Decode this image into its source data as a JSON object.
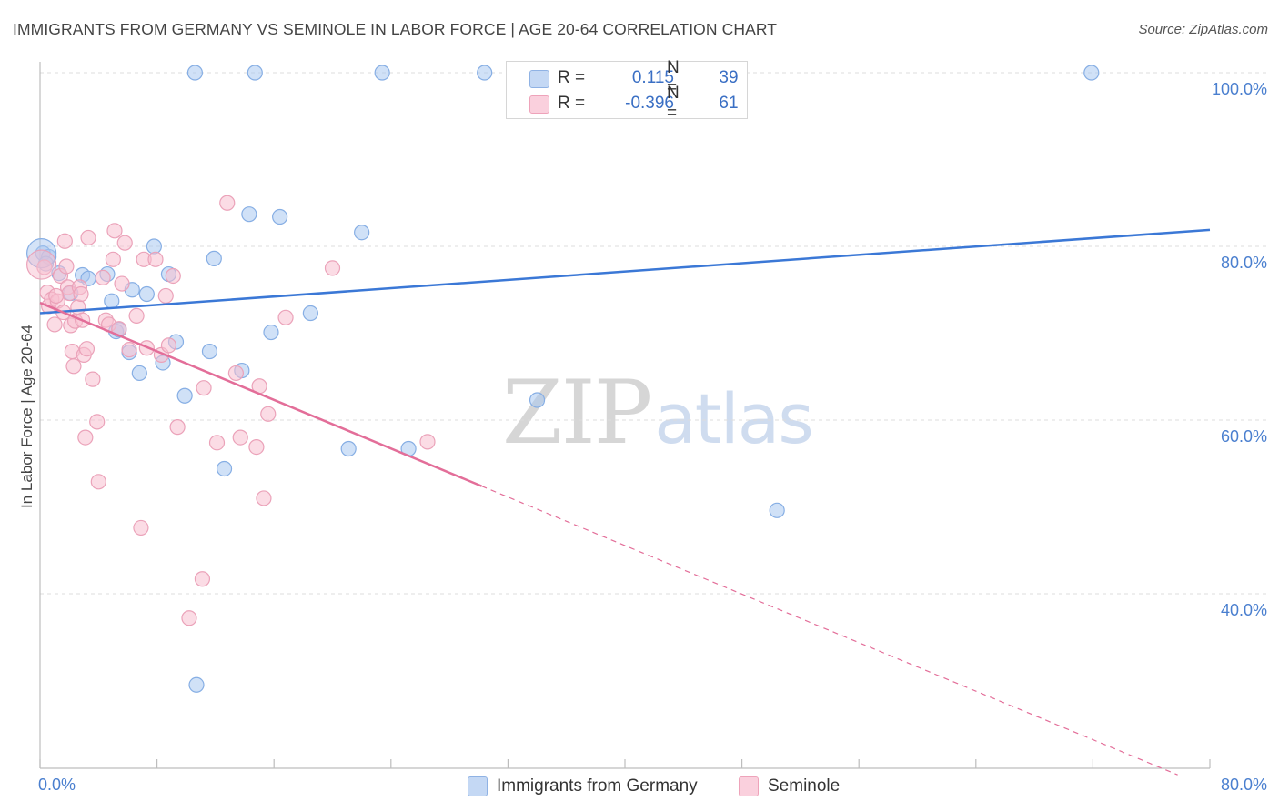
{
  "header": {
    "title": "IMMIGRANTS FROM GERMANY VS SEMINOLE IN LABOR FORCE | AGE 20-64 CORRELATION CHART",
    "source": "Source: ZipAtlas.com"
  },
  "watermark": {
    "zip": "ZIP",
    "atlas": "atlas"
  },
  "legend_top": {
    "rows": [
      {
        "r_label": "R =",
        "r_value": "0.115",
        "n_label": "N =",
        "n_value": "39",
        "color": "#9ec0ee"
      },
      {
        "r_label": "R =",
        "r_value": "-0.396",
        "n_label": "N =",
        "n_value": "61",
        "color": "#f4aec4"
      }
    ]
  },
  "legend_bottom": {
    "items": [
      {
        "label": "Immigrants from Germany",
        "color": "#9ec0ee"
      },
      {
        "label": "Seminole",
        "color": "#f4aec4"
      }
    ]
  },
  "chart_data": {
    "type": "scatter",
    "title": "IMMIGRANTS FROM GERMANY VS SEMINOLE IN LABOR FORCE | AGE 20-64 CORRELATION CHART",
    "xlabel": "",
    "ylabel": "In Labor Force | Age 20-64",
    "xlim": [
      0,
      80
    ],
    "ylim": [
      20,
      102
    ],
    "x_tick_labels": [
      "0.0%",
      "80.0%"
    ],
    "y_ticks": [
      40,
      60,
      80,
      100
    ],
    "y_tick_labels": [
      "40.0%",
      "60.0%",
      "80.0%",
      "100.0%"
    ],
    "grid": true,
    "legend_position": "top-center",
    "colors": {
      "blue": "#3b78d6",
      "pink": "#e36e99",
      "blue_fill": "#aac8f0",
      "pink_fill": "#f7bfd0"
    },
    "series": [
      {
        "name": "Immigrants from Germany",
        "color": "#3b78d6",
        "trend": {
          "x": [
            0,
            80
          ],
          "y": [
            72.3,
            81.9
          ],
          "dashed_from": null
        },
        "points": [
          [
            0.2,
            79.2
          ],
          [
            0.6,
            78.8
          ],
          [
            1.3,
            76.9
          ],
          [
            2.1,
            74.6
          ],
          [
            2.9,
            76.7
          ],
          [
            3.3,
            76.3
          ],
          [
            4.6,
            76.8
          ],
          [
            4.9,
            73.7
          ],
          [
            5.2,
            70.2
          ],
          [
            5.4,
            70.4
          ],
          [
            6.1,
            67.8
          ],
          [
            6.3,
            75.0
          ],
          [
            6.8,
            65.4
          ],
          [
            7.3,
            74.5
          ],
          [
            7.8,
            80.0
          ],
          [
            8.4,
            66.6
          ],
          [
            8.8,
            76.8
          ],
          [
            9.3,
            69.0
          ],
          [
            9.9,
            62.8
          ],
          [
            10.7,
            29.5
          ],
          [
            11.6,
            67.9
          ],
          [
            11.9,
            78.6
          ],
          [
            12.6,
            54.4
          ],
          [
            13.8,
            65.7
          ],
          [
            14.3,
            83.7
          ],
          [
            16.4,
            83.4
          ],
          [
            15.8,
            70.1
          ],
          [
            18.5,
            72.3
          ],
          [
            22.0,
            81.6
          ],
          [
            21.1,
            56.7
          ],
          [
            25.2,
            56.7
          ],
          [
            34.0,
            62.3
          ],
          [
            50.4,
            49.6
          ],
          [
            10.6,
            100.0
          ],
          [
            14.7,
            100.0
          ],
          [
            23.4,
            100.0
          ],
          [
            30.4,
            100.0
          ],
          [
            71.9,
            100.0
          ],
          [
            0.4,
            78.0
          ]
        ],
        "big_point": [
          0.1,
          79.2
        ]
      },
      {
        "name": "Seminole",
        "color": "#e36e99",
        "trend": {
          "x": [
            0,
            80
          ],
          "y": [
            73.5,
            17.6
          ],
          "dashed_from": 30.2
        },
        "points": [
          [
            0.3,
            77.6
          ],
          [
            0.5,
            74.7
          ],
          [
            0.6,
            73.1
          ],
          [
            0.8,
            73.9
          ],
          [
            1.0,
            71.0
          ],
          [
            1.2,
            73.7
          ],
          [
            1.4,
            76.6
          ],
          [
            1.6,
            72.4
          ],
          [
            1.7,
            80.6
          ],
          [
            1.8,
            77.7
          ],
          [
            1.9,
            75.3
          ],
          [
            2.0,
            74.6
          ],
          [
            2.1,
            70.9
          ],
          [
            2.2,
            67.9
          ],
          [
            2.3,
            66.2
          ],
          [
            2.4,
            71.4
          ],
          [
            2.6,
            73.0
          ],
          [
            2.7,
            75.3
          ],
          [
            2.8,
            74.5
          ],
          [
            2.9,
            71.5
          ],
          [
            3.0,
            67.5
          ],
          [
            3.1,
            58.0
          ],
          [
            3.2,
            68.2
          ],
          [
            3.3,
            81.0
          ],
          [
            3.6,
            64.7
          ],
          [
            3.9,
            59.8
          ],
          [
            4.3,
            76.4
          ],
          [
            4.5,
            71.5
          ],
          [
            4.7,
            71.0
          ],
          [
            5.0,
            78.5
          ],
          [
            5.1,
            81.8
          ],
          [
            5.4,
            70.5
          ],
          [
            5.6,
            75.7
          ],
          [
            5.8,
            80.4
          ],
          [
            6.1,
            68.1
          ],
          [
            6.6,
            72.0
          ],
          [
            6.9,
            47.6
          ],
          [
            7.1,
            78.5
          ],
          [
            7.3,
            68.3
          ],
          [
            7.9,
            78.5
          ],
          [
            8.3,
            67.5
          ],
          [
            8.6,
            74.3
          ],
          [
            8.8,
            68.6
          ],
          [
            9.1,
            76.6
          ],
          [
            9.4,
            59.2
          ],
          [
            10.2,
            37.2
          ],
          [
            11.1,
            41.7
          ],
          [
            11.2,
            63.7
          ],
          [
            12.1,
            57.4
          ],
          [
            12.8,
            85.0
          ],
          [
            13.4,
            65.4
          ],
          [
            13.7,
            58.0
          ],
          [
            14.8,
            56.9
          ],
          [
            15.0,
            63.9
          ],
          [
            15.3,
            51.0
          ],
          [
            15.6,
            60.7
          ],
          [
            16.8,
            71.8
          ],
          [
            20.0,
            77.5
          ],
          [
            26.5,
            57.5
          ],
          [
            4.0,
            52.9
          ],
          [
            1.1,
            74.3
          ]
        ],
        "big_point": [
          0.1,
          77.9
        ]
      }
    ]
  }
}
